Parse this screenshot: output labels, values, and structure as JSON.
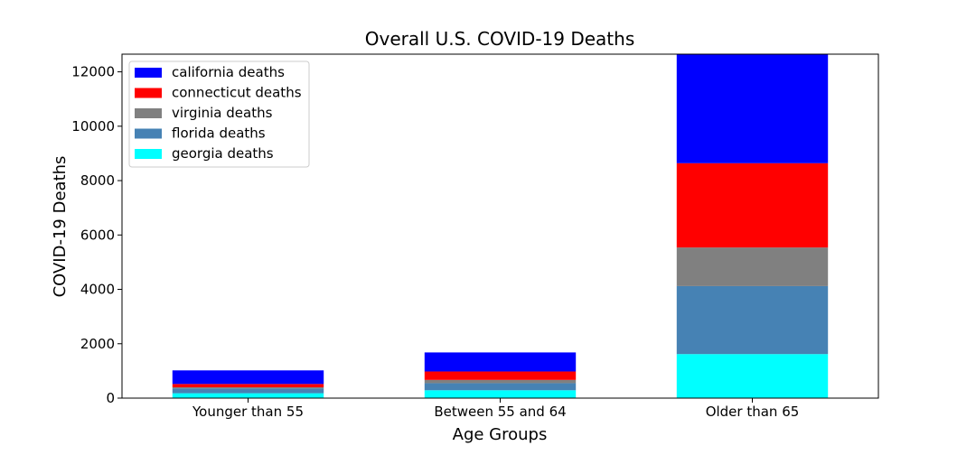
{
  "chart_data": {
    "type": "bar",
    "stacked": true,
    "title": "Overall U.S. COVID-19 Deaths",
    "xlabel": "Age Groups",
    "ylabel": "COVID-19 Deaths",
    "categories": [
      "Younger than 55",
      "Between 55 and 64",
      "Older than 65"
    ],
    "ylim": [
      0,
      12650
    ],
    "yticks": [
      0,
      2000,
      4000,
      6000,
      8000,
      10000,
      12000
    ],
    "legend_position": "top-left",
    "series": [
      {
        "name": "georgia deaths",
        "color": "#00ffff",
        "values": [
          180,
          290,
          1620
        ]
      },
      {
        "name": "florida deaths",
        "color": "#4682b4",
        "values": [
          180,
          260,
          2500
        ]
      },
      {
        "name": "virginia deaths",
        "color": "#808080",
        "values": [
          40,
          120,
          1420
        ]
      },
      {
        "name": "connecticut deaths",
        "color": "#ff0000",
        "values": [
          120,
          310,
          3100
        ]
      },
      {
        "name": "california deaths",
        "color": "#0000ff",
        "values": [
          500,
          700,
          4000
        ]
      }
    ],
    "legend_order": [
      "california deaths",
      "connecticut deaths",
      "virginia deaths",
      "florida deaths",
      "georgia deaths"
    ]
  }
}
